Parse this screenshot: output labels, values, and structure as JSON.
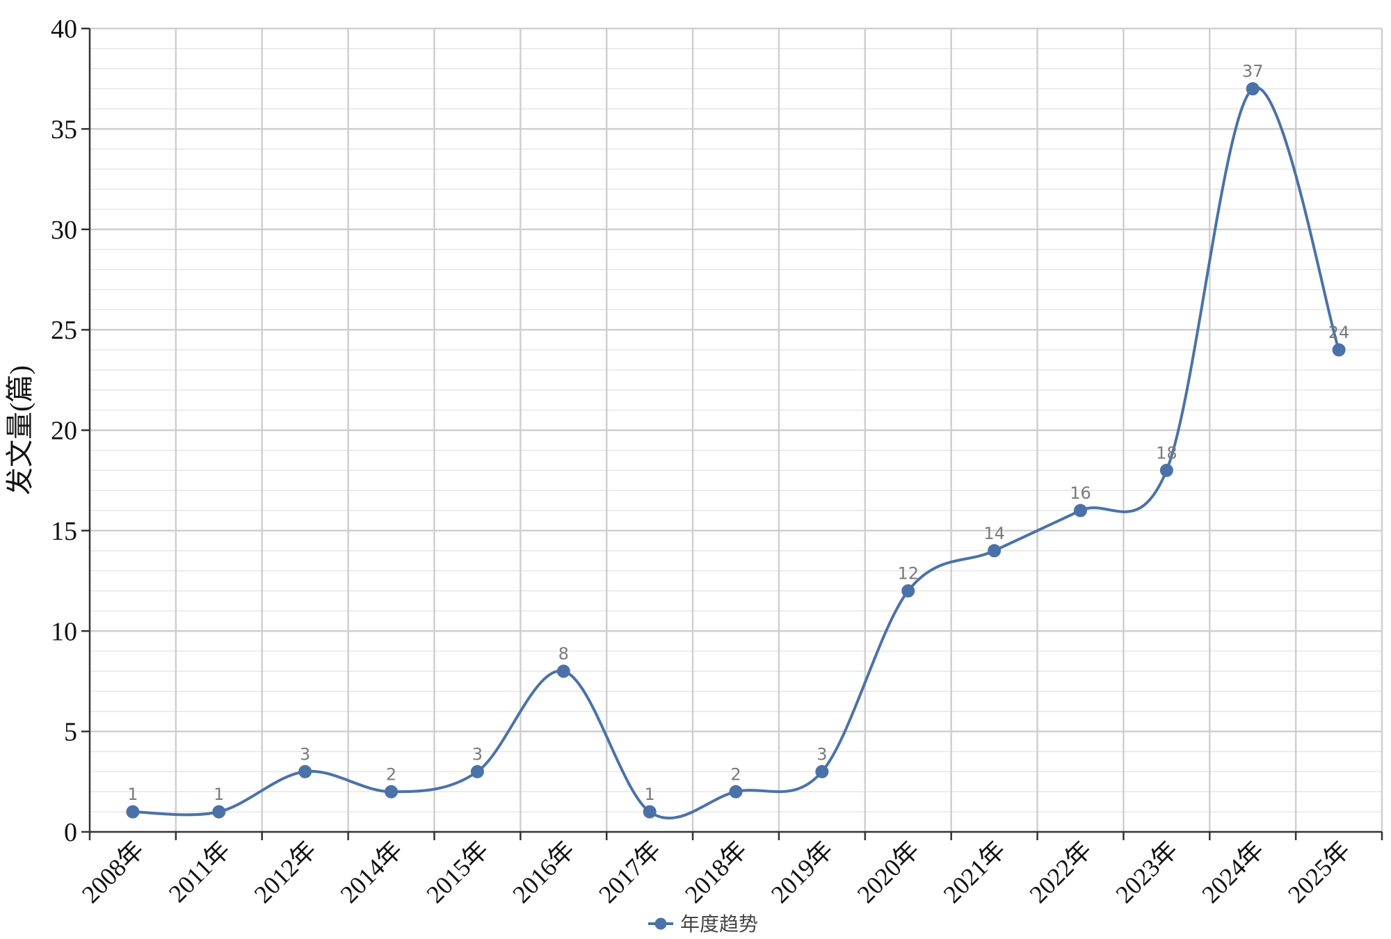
{
  "chart_data": {
    "type": "line",
    "title": "",
    "xlabel": "",
    "ylabel": "发文量(篇)",
    "ylim": [
      0,
      40
    ],
    "yticks": [
      0,
      5,
      10,
      15,
      20,
      25,
      30,
      35,
      40
    ],
    "categories": [
      "2008年",
      "2011年",
      "2012年",
      "2014年",
      "2015年",
      "2016年",
      "2017年",
      "2018年",
      "2019年",
      "2020年",
      "2021年",
      "2022年",
      "2023年",
      "2024年",
      "2025年"
    ],
    "series": [
      {
        "name": "年度趋势",
        "values": [
          1,
          1,
          3,
          2,
          3,
          8,
          1,
          2,
          3,
          12,
          14,
          16,
          18,
          37,
          24
        ]
      }
    ],
    "grid": true,
    "legend_position": "bottom-center",
    "line_color": "#4a72a8",
    "marker_color": "#4a72a8",
    "data_label_color": "#7a7a7a"
  }
}
